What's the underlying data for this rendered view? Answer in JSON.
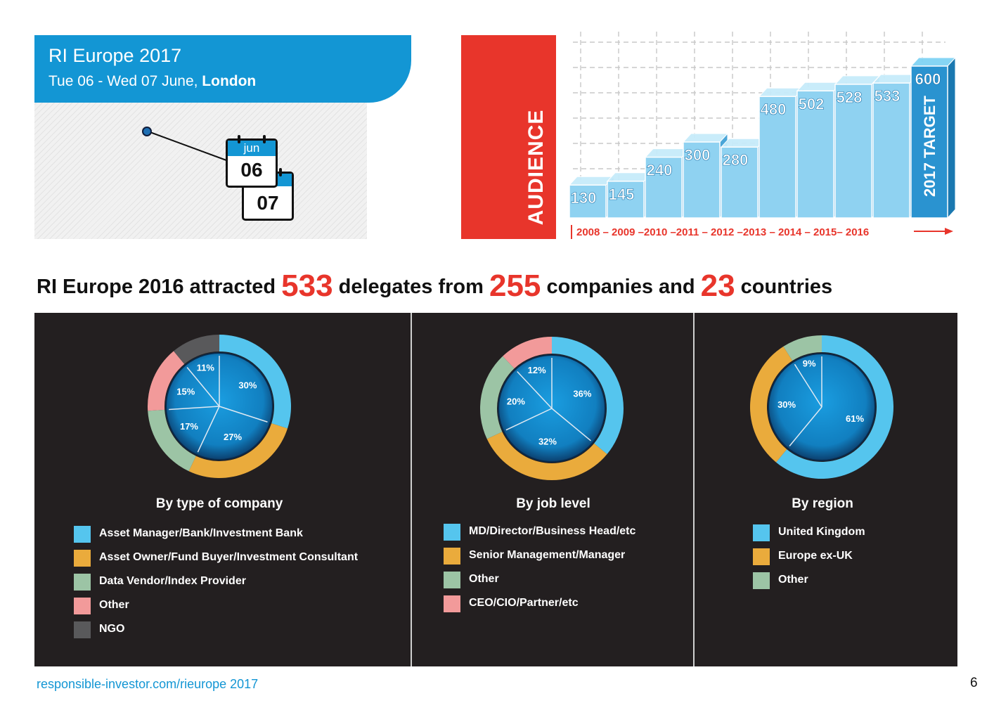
{
  "event": {
    "title": "RI Europe 2017",
    "date_range": "Tue 06 - Wed 07 June, ",
    "city": "London",
    "calendar_month": "jun",
    "day_start": "06",
    "day_end": "07"
  },
  "audience_label": "AUDIENCE",
  "headline": {
    "part1": "RI Europe 2016 attracted ",
    "delegates": "533",
    "part2": " delegates from ",
    "companies": "255",
    "part3": " companies and ",
    "countries": "23",
    "part4": " countries"
  },
  "colors": {
    "blue": "#1396d4",
    "red": "#e8352b",
    "dark": "#231f20",
    "slice_blue": "#55c5ee",
    "slice_orange": "#eaab3c",
    "slice_green": "#9cc4a5",
    "slice_pink": "#f29a9a",
    "slice_grey": "#59595b"
  },
  "chart_data": [
    {
      "type": "bar",
      "id": "audience",
      "categories": [
        "2008",
        "2009",
        "2010",
        "2011",
        "2012",
        "2013",
        "2014",
        "2015",
        "2016",
        "2017 TARGET"
      ],
      "values": [
        130,
        145,
        240,
        300,
        280,
        480,
        502,
        528,
        533,
        600
      ],
      "axis_label": "2008 – 2009 –2010 –2011 – 2012 –2013 – 2014 – 2015– 2016",
      "ylim": [
        0,
        650
      ],
      "grid": true
    },
    {
      "type": "pie",
      "id": "company",
      "title": "By type of company",
      "labels": [
        "Asset Manager/Bank/Investment Bank",
        "Asset Owner/Fund Buyer/Investment Consultant",
        "Data Vendor/Index Provider",
        "Other",
        "NGO"
      ],
      "values": [
        30,
        27,
        17,
        15,
        11
      ],
      "value_labels": [
        "30%",
        "27%",
        "17%",
        "15%",
        "11%"
      ],
      "colors": [
        "#55c5ee",
        "#eaab3c",
        "#9cc4a5",
        "#f29a9a",
        "#59595b"
      ]
    },
    {
      "type": "pie",
      "id": "job",
      "title": "By job level",
      "labels": [
        "MD/Director/Business Head/etc",
        "Senior Management/Manager",
        "Other",
        "CEO/CIO/Partner/etc"
      ],
      "values": [
        36,
        32,
        20,
        12
      ],
      "value_labels": [
        "36%",
        "32%",
        "20%",
        "12%"
      ],
      "colors": [
        "#55c5ee",
        "#eaab3c",
        "#9cc4a5",
        "#f29a9a"
      ]
    },
    {
      "type": "pie",
      "id": "region",
      "title": "By region",
      "labels": [
        "United Kingdom",
        "Europe ex-UK",
        "Other"
      ],
      "values": [
        61,
        30,
        9
      ],
      "value_labels": [
        "61%",
        "30%",
        "9%"
      ],
      "colors": [
        "#55c5ee",
        "#eaab3c",
        "#9cc4a5"
      ]
    }
  ],
  "footer": {
    "link": "responsible-investor.com/rieurope 2017",
    "page_number": "6"
  }
}
